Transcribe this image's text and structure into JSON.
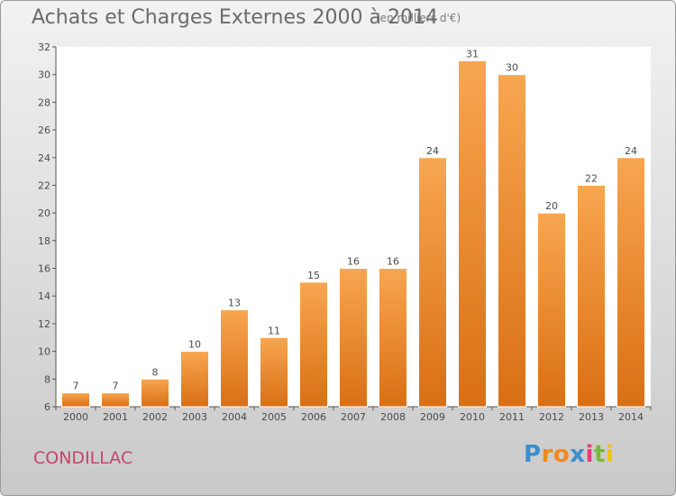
{
  "chart_data": {
    "type": "bar",
    "title": "Achats et Charges Externes 2000 à 2014",
    "subtitle": "(en milliers d'€)",
    "categories": [
      "2000",
      "2001",
      "2002",
      "2003",
      "2004",
      "2005",
      "2006",
      "2007",
      "2008",
      "2009",
      "2010",
      "2011",
      "2012",
      "2013",
      "2014"
    ],
    "values": [
      7,
      7,
      8,
      10,
      13,
      11,
      15,
      16,
      16,
      24,
      31,
      30,
      20,
      22,
      24
    ],
    "ylim": [
      6,
      32
    ],
    "yticks": [
      6,
      8,
      10,
      12,
      14,
      16,
      18,
      20,
      22,
      24,
      26,
      28,
      30,
      32
    ],
    "grid": false,
    "bar_color_top": "#f8a650",
    "bar_color_bottom": "#d96f14"
  },
  "commune": "CONDILLAC",
  "logo": {
    "letters": [
      "P",
      "r",
      "o",
      "x",
      "i",
      "t",
      "i"
    ],
    "colors": [
      "#3a8fd0",
      "#f08a1c",
      "#f08a1c",
      "#3a8fd0",
      "#e23c7e",
      "#7ab83a",
      "#f0c21c"
    ]
  }
}
